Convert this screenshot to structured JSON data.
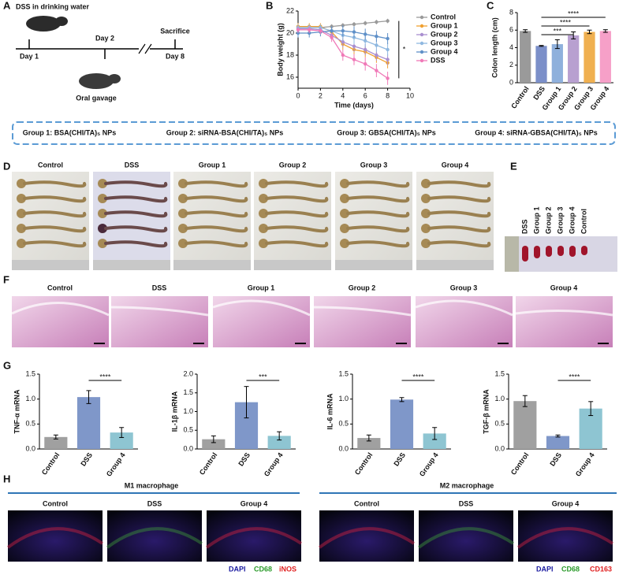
{
  "panel_letters": [
    "A",
    "B",
    "C",
    "D",
    "E",
    "F",
    "G",
    "H"
  ],
  "panel_a": {
    "dss": "DSS in drinking water",
    "day1": "Day 1",
    "day2": "Day 2",
    "gavage": "Oral gavage",
    "sacrifice": "Sacrifice",
    "day8": "Day 8"
  },
  "groups_banner": [
    "Group 1: BSA(CHI/TA)₅ NPs",
    "Group 2: siRNA-BSA(CHI/TA)₅ NPs",
    "Group 3: GBSA(CHI/TA)₅ NPs",
    "Group 4: siRNA-GBSA(CHI/TA)₅ NPs"
  ],
  "panel_d": {
    "labels": [
      "Control",
      "DSS",
      "Group 1",
      "Group 2",
      "Group 3",
      "Group 4"
    ]
  },
  "panel_e": {
    "labels": [
      "DSS",
      "Group 1",
      "Group 2",
      "Group 3",
      "Group 4",
      "Control"
    ]
  },
  "panel_f": {
    "labels": [
      "Control",
      "DSS",
      "Group 1",
      "Group 2",
      "Group 3",
      "Group 4"
    ]
  },
  "panel_h": {
    "m1": "M1 macrophage",
    "m2": "M2 macrophage",
    "m1_labels": [
      "Control",
      "DSS",
      "Group 4"
    ],
    "m2_labels": [
      "Control",
      "DSS",
      "Group 4"
    ],
    "m1_stains": [
      "DAPI",
      "CD68",
      "iNOS"
    ],
    "m2_stains": [
      "DAPI",
      "CD68",
      "CD163"
    ]
  },
  "chart_data": [
    {
      "type": "line",
      "xlabel": "Time (days)",
      "ylabel": "Body weight (g)",
      "x": [
        0,
        1,
        2,
        3,
        4,
        5,
        6,
        7,
        8
      ],
      "xlim": [
        0,
        10
      ],
      "xticks": [
        0,
        2,
        4,
        6,
        8,
        10
      ],
      "ylim": [
        15,
        22
      ],
      "yticks": [
        16,
        18,
        20,
        22
      ],
      "annotation": "*",
      "series": [
        {
          "name": "Control",
          "color": "#9a9a9a",
          "values": [
            20.5,
            20.5,
            20.5,
            20.6,
            20.7,
            20.8,
            20.9,
            21.0,
            21.1
          ],
          "errors": [
            0.2,
            0.2,
            0.2,
            0.2,
            0.2,
            0.2,
            0.2,
            0.2,
            0.2
          ]
        },
        {
          "name": "Group 1",
          "color": "#f0a030",
          "values": [
            20.6,
            20.6,
            20.6,
            20.1,
            19.0,
            18.5,
            18.3,
            17.8,
            17.3
          ],
          "errors": [
            0.3,
            0.3,
            0.3,
            0.4,
            0.5,
            0.5,
            0.5,
            0.5,
            0.5
          ]
        },
        {
          "name": "Group 2",
          "color": "#a98fd0",
          "values": [
            20.4,
            20.4,
            20.3,
            19.8,
            19.2,
            18.8,
            18.5,
            18.0,
            17.6
          ],
          "errors": [
            0.3,
            0.3,
            0.3,
            0.4,
            0.5,
            0.5,
            0.5,
            0.5,
            0.5
          ]
        },
        {
          "name": "Group 3",
          "color": "#8fb8e0",
          "values": [
            20.5,
            20.5,
            20.5,
            20.2,
            19.8,
            19.6,
            19.3,
            18.9,
            18.5
          ],
          "errors": [
            0.3,
            0.3,
            0.3,
            0.4,
            0.5,
            0.6,
            0.6,
            0.6,
            0.6
          ]
        },
        {
          "name": "Group 4",
          "color": "#5f90c8",
          "values": [
            20.0,
            20.0,
            20.1,
            20.2,
            20.2,
            20.1,
            19.9,
            19.7,
            19.5
          ],
          "errors": [
            0.4,
            0.4,
            0.4,
            0.4,
            0.5,
            0.5,
            0.5,
            0.5,
            0.5
          ]
        },
        {
          "name": "DSS",
          "color": "#f07ab8",
          "values": [
            20.3,
            20.3,
            20.2,
            19.6,
            18.0,
            17.6,
            17.2,
            16.6,
            15.9
          ],
          "errors": [
            0.3,
            0.3,
            0.3,
            0.4,
            0.5,
            0.5,
            0.6,
            0.6,
            0.6
          ]
        }
      ]
    },
    {
      "type": "bar",
      "ylabel": "Colon length (cm)",
      "categories": [
        "Control",
        "DSS",
        "Group 1",
        "Group 2",
        "Group 3",
        "Group 4"
      ],
      "values": [
        5.9,
        4.2,
        4.4,
        5.4,
        5.8,
        5.9
      ],
      "errors": [
        0.15,
        0.05,
        0.5,
        0.4,
        0.2,
        0.15
      ],
      "colors": [
        "#9a9a9a",
        "#7b8fc9",
        "#8fb0dc",
        "#b8a0d0",
        "#f0b050",
        "#f6a0c8"
      ],
      "ylim": [
        0,
        8
      ],
      "yticks": [
        0,
        2,
        4,
        6,
        8
      ],
      "annotations": [
        "***",
        "****",
        "****"
      ]
    },
    {
      "type": "bar",
      "ylabel": "TNF-α mRNA",
      "categories": [
        "Control",
        "DSS",
        "Group 4"
      ],
      "values": [
        0.24,
        1.04,
        0.33
      ],
      "errors": [
        0.04,
        0.13,
        0.1
      ],
      "colors": [
        "#a0a0a0",
        "#7f97c9",
        "#8ec5d2"
      ],
      "ylim": [
        0,
        1.5
      ],
      "yticks": [
        {
          "value": 0,
          "label": "0.0"
        },
        {
          "value": 0.5,
          "label": "0.5"
        },
        {
          "value": 1,
          "label": "1.0"
        },
        {
          "value": 1.5,
          "label": "1.5"
        }
      ],
      "annotations": [
        "****"
      ]
    },
    {
      "type": "bar",
      "ylabel": "IL-1β mRNA",
      "categories": [
        "Control",
        "DSS",
        "Group 4"
      ],
      "values": [
        0.26,
        1.25,
        0.35
      ],
      "errors": [
        0.09,
        0.42,
        0.11
      ],
      "colors": [
        "#a0a0a0",
        "#7f97c9",
        "#8ec5d2"
      ],
      "ylim": [
        0,
        2
      ],
      "yticks": [
        {
          "value": 0,
          "label": "0.0"
        },
        {
          "value": 0.5,
          "label": "0.5"
        },
        {
          "value": 1,
          "label": "1.0"
        },
        {
          "value": 1.5,
          "label": "1.5"
        },
        {
          "value": 2,
          "label": "2.0"
        }
      ],
      "annotations": [
        "***"
      ]
    },
    {
      "type": "bar",
      "ylabel": "IL-6 mRNA",
      "categories": [
        "Control",
        "DSS",
        "Group 4"
      ],
      "values": [
        0.22,
        0.99,
        0.31
      ],
      "errors": [
        0.06,
        0.04,
        0.12
      ],
      "colors": [
        "#a0a0a0",
        "#7f97c9",
        "#8ec5d2"
      ],
      "ylim": [
        0,
        1.5
      ],
      "yticks": [
        {
          "value": 0,
          "label": "0.0"
        },
        {
          "value": 0.5,
          "label": "0.5"
        },
        {
          "value": 1,
          "label": "1.0"
        },
        {
          "value": 1.5,
          "label": "1.5"
        }
      ],
      "annotations": [
        "****"
      ]
    },
    {
      "type": "bar",
      "ylabel": "TGF-β mRNA",
      "categories": [
        "Control",
        "DSS",
        "Group 4"
      ],
      "values": [
        0.96,
        0.26,
        0.81
      ],
      "errors": [
        0.11,
        0.02,
        0.14
      ],
      "colors": [
        "#a0a0a0",
        "#7f97c9",
        "#8ec5d2"
      ],
      "ylim": [
        0,
        1.5
      ],
      "yticks": [
        {
          "value": 0,
          "label": "0.0"
        },
        {
          "value": 0.5,
          "label": "0.5"
        },
        {
          "value": 1,
          "label": "1.0"
        },
        {
          "value": 1.5,
          "label": "1.5"
        }
      ],
      "annotations": [
        "****"
      ]
    }
  ]
}
